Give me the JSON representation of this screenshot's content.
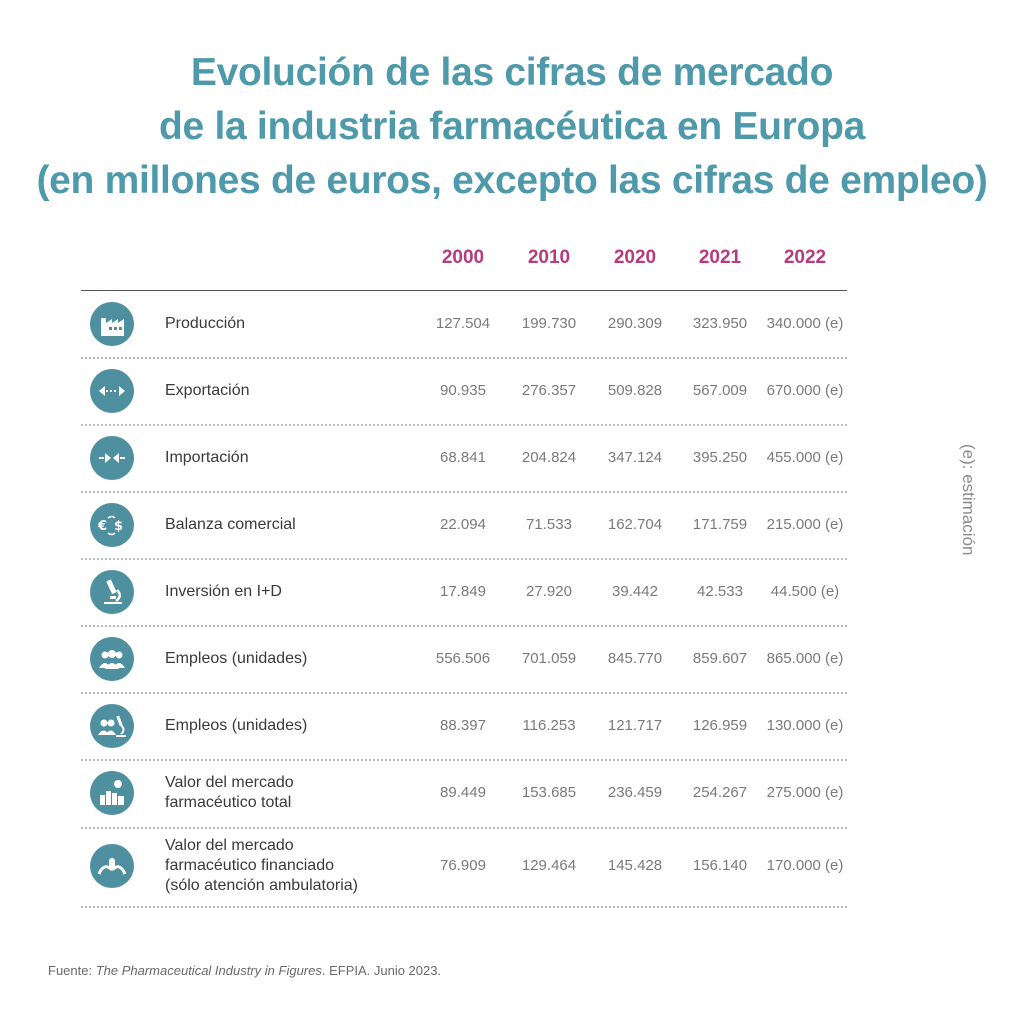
{
  "title_lines": [
    "Evolución de las cifras de mercado",
    "de la industria farmacéutica en Europa",
    "(en millones de euros, excepto las cifras de empleo)"
  ],
  "side_note": "(e): estimación",
  "source": {
    "prefix": "Fuente: ",
    "italic": "The Pharmaceutical Industry in Figures",
    "suffix": ". EFPIA. Junio 2023."
  },
  "colors": {
    "title": "#4e9aab",
    "year_header": "#b73a7f",
    "icon_circle": "#4e8fa0",
    "value_text": "#7a7a7a"
  },
  "chart_data": {
    "type": "table",
    "columns": [
      "2000",
      "2010",
      "2020",
      "2021",
      "2022"
    ],
    "rows": [
      {
        "icon": "factory-icon",
        "label": [
          "Producción"
        ],
        "values": [
          "127.504",
          "199.730",
          "290.309",
          "323.950",
          "340.000 (e)"
        ]
      },
      {
        "icon": "export-arrows-icon",
        "label": [
          "Exportación"
        ],
        "values": [
          "90.935",
          "276.357",
          "509.828",
          "567.009",
          "670.000 (e)"
        ]
      },
      {
        "icon": "import-arrows-icon",
        "label": [
          "Importación"
        ],
        "values": [
          "68.841",
          "204.824",
          "347.124",
          "395.250",
          "455.000 (e)"
        ]
      },
      {
        "icon": "currency-exchange-icon",
        "label": [
          "Balanza comercial"
        ],
        "values": [
          "22.094",
          "71.533",
          "162.704",
          "171.759",
          "215.000 (e)"
        ]
      },
      {
        "icon": "microscope-icon",
        "label": [
          "Inversión en I+D"
        ],
        "values": [
          "17.849",
          "27.920",
          "39.442",
          "42.533",
          "44.500 (e)"
        ]
      },
      {
        "icon": "people-icon",
        "label": [
          "Empleos (unidades)"
        ],
        "values": [
          "556.506",
          "701.059",
          "845.770",
          "859.607",
          "865.000 (e)"
        ]
      },
      {
        "icon": "people-microscope-icon",
        "label": [
          "Empleos (unidades)"
        ],
        "values": [
          "88.397",
          "116.253",
          "121.717",
          "126.959",
          "130.000 (e)"
        ]
      },
      {
        "icon": "market-buildings-icon",
        "label": [
          "Valor del mercado",
          "farmacéutico total"
        ],
        "values": [
          "89.449",
          "153.685",
          "236.459",
          "254.267",
          "275.000 (e)"
        ]
      },
      {
        "icon": "hands-pill-icon",
        "label": [
          "Valor del mercado",
          "farmacéutico financiado",
          "(sólo atención ambulatoria)"
        ],
        "values": [
          "76.909",
          "129.464",
          "145.428",
          "156.140",
          "170.000 (e)"
        ]
      }
    ]
  }
}
